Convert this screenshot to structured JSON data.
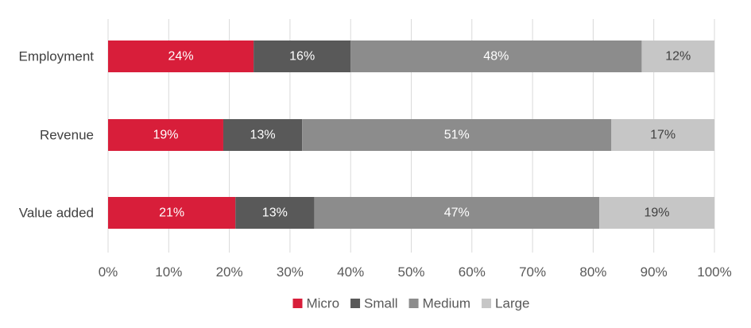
{
  "chart_data": {
    "type": "bar",
    "orientation": "horizontal",
    "stacked": "percent",
    "categories": [
      "Employment",
      "Revenue",
      "Value added"
    ],
    "series": [
      {
        "name": "Micro",
        "values": [
          24,
          19,
          21
        ],
        "color": "#d81e3a",
        "label_color": "#ffffff"
      },
      {
        "name": "Small",
        "values": [
          16,
          13,
          13
        ],
        "color": "#595959",
        "label_color": "#ffffff"
      },
      {
        "name": "Medium",
        "values": [
          48,
          51,
          47
        ],
        "color": "#8c8c8c",
        "label_color": "#ffffff"
      },
      {
        "name": "Large",
        "values": [
          12,
          17,
          19
        ],
        "color": "#c6c6c6",
        "label_color": "#404040"
      }
    ],
    "data_labels": [
      [
        "24%",
        "16%",
        "48%",
        "12%"
      ],
      [
        "19%",
        "13%",
        "51%",
        "17%"
      ],
      [
        "21%",
        "13%",
        "47%",
        "19%"
      ]
    ],
    "xlim": [
      0,
      100
    ],
    "xticks": [
      "0%",
      "10%",
      "20%",
      "30%",
      "40%",
      "50%",
      "60%",
      "70%",
      "80%",
      "90%",
      "100%"
    ],
    "title": "",
    "xlabel": "",
    "ylabel": "",
    "grid": "vertical",
    "legend_position": "bottom"
  }
}
